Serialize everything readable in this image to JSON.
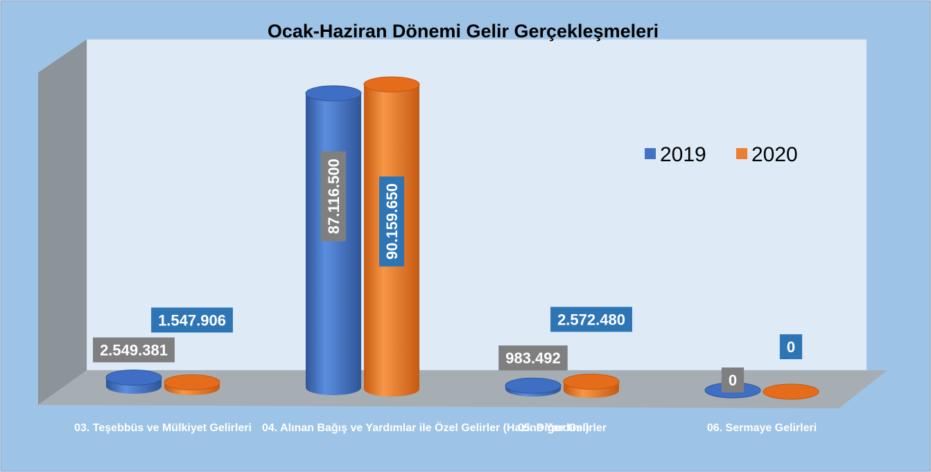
{
  "chart_data": {
    "type": "bar3d",
    "title": "Ocak-Haziran Dönemi Gelir Gerçekleşmeleri",
    "categories": [
      "03. Teşebbüs ve Mülkiyet Gelirleri",
      "04. Alınan Bağış ve Yardımlar ile Özel Gelirler (Hazine Yardımı)",
      "05. Diğer Gelirler",
      "06. Sermaye Gelirleri"
    ],
    "series": [
      {
        "name": "2019",
        "color": "#4472c4",
        "values": [
          2549381,
          87116500,
          983492,
          0
        ],
        "value_labels": [
          "2.549.381",
          "87.116.500",
          "983.492",
          "0"
        ]
      },
      {
        "name": "2020",
        "color": "#ed7d31",
        "values": [
          1547906,
          90159650,
          2572480,
          0
        ],
        "value_labels": [
          "1.547.906",
          "90.159.650",
          "2.572.480",
          "0"
        ]
      }
    ],
    "legend": "right"
  }
}
